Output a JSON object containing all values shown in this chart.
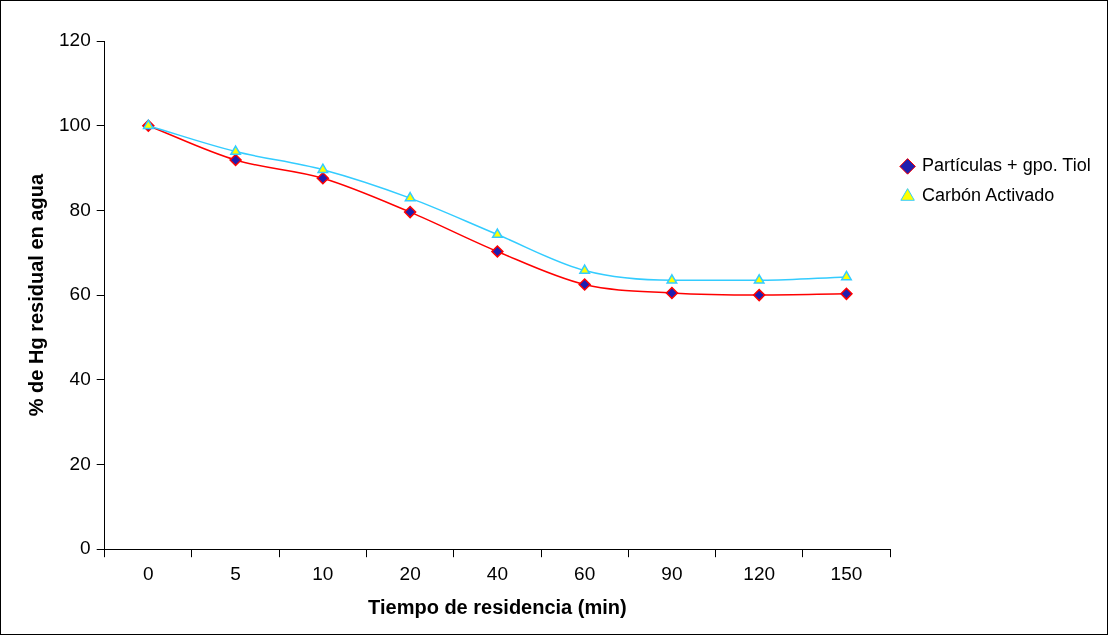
{
  "chart_data": {
    "type": "line",
    "xlabel": "Tiempo de residencia (min)",
    "ylabel": "% de Hg residual en agua",
    "categories": [
      "0",
      "5",
      "10",
      "20",
      "40",
      "60",
      "90",
      "120",
      "150"
    ],
    "ylim": [
      0,
      120
    ],
    "yticks": [
      0,
      20,
      40,
      60,
      80,
      100,
      120
    ],
    "grid": false,
    "legend": "right",
    "series": [
      {
        "name": "Partículas + gpo. Tiol",
        "color": "#ff0000",
        "marker": "diamond",
        "values": [
          100,
          91.9,
          87.6,
          79.6,
          70.3,
          62.5,
          60.5,
          60.0,
          60.3
        ]
      },
      {
        "name": "Carbón Activado",
        "color": "#33ccff",
        "marker": "triangle",
        "values": [
          100,
          93.9,
          89.6,
          82.9,
          74.3,
          65.8,
          63.5,
          63.5,
          64.3
        ]
      }
    ]
  }
}
